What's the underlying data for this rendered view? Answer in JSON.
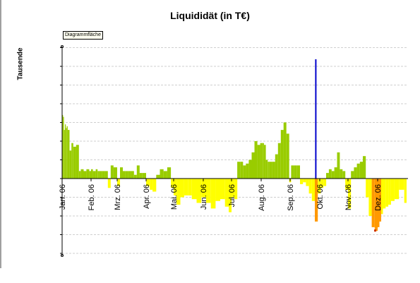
{
  "title": "Liquididät (in T€)",
  "ylabel": "Tausende",
  "tooltip": "Diagrammfläche",
  "chart_data": {
    "type": "bar",
    "title": "Liquididät (in T€)",
    "ylabel": "Tausende",
    "xlabel": "",
    "grid": true,
    "legend": "none",
    "categories": [
      "Jan. 06",
      "Feb. 06",
      "Mrz. 06",
      "Apr. 06",
      "Mai. 06",
      "Jun. 06",
      "Jul. 06",
      "Aug. 06",
      "Sep. 06",
      "Okt. 06",
      "Nov. 06",
      "Dez. 06"
    ],
    "ylim": [
      -4,
      7
    ],
    "vertical_line_date": "Sep. 27 06",
    "colors": {
      "positive": "#99cc00",
      "negative_low": "#ffff00",
      "negative_mid": "#ff9900",
      "negative_high": "#cc3300",
      "marker": "#0000cc"
    },
    "series": [
      {
        "x": [
          "Jan 01",
          "Jan 02",
          "Jan 03",
          "Jan 04",
          "Jan 05",
          "Jan 06",
          "Jan 07",
          "Jan 09",
          "Jan 11",
          "Jan 13",
          "Jan 16",
          "Jan 19",
          "Jan 21",
          "Jan 24",
          "Jan 27",
          "Jan 30",
          "Feb 01",
          "Feb 03",
          "Feb 06",
          "Feb 08",
          "Feb 10",
          "Feb 13",
          "Feb 16",
          "Feb 19",
          "Feb 22",
          "Feb 25",
          "Mar 01",
          "Mar 04",
          "Mar 07",
          "Mar 10",
          "Mar 13",
          "Mar 16",
          "Mar 19",
          "Mar 22",
          "Mar 25",
          "Mar 28",
          "Apr 01",
          "Apr 05",
          "Apr 08",
          "Apr 12",
          "Apr 16",
          "Apr 20",
          "Apr 24",
          "Apr 28",
          "May 01",
          "May 04",
          "May 08",
          "May 12",
          "May 16",
          "May 20",
          "May 25",
          "May 30",
          "Jun 04",
          "Jun 09",
          "Jun 14",
          "Jun 19",
          "Jun 24",
          "Jun 28",
          "Jul 01",
          "Jul 04",
          "Jul 07",
          "Jul 10",
          "Jul 13",
          "Jul 16",
          "Jul 19",
          "Jul 22",
          "Jul 25",
          "Jul 28",
          "Jul 31",
          "Aug 02",
          "Aug 04",
          "Aug 06",
          "Aug 08",
          "Aug 10",
          "Aug 13",
          "Aug 16",
          "Aug 19",
          "Aug 22",
          "Aug 25",
          "Aug 28",
          "Aug 31",
          "Sep 02",
          "Sep 05",
          "Sep 08",
          "Sep 11",
          "Sep 14",
          "Sep 17",
          "Sep 20",
          "Sep 23",
          "Sep 26",
          "Sep 29",
          "Oct 02",
          "Oct 05",
          "Oct 08",
          "Oct 11",
          "Oct 14",
          "Oct 17",
          "Oct 20",
          "Oct 23",
          "Oct 26",
          "Oct 29",
          "Nov 01",
          "Nov 04",
          "Nov 07",
          "Nov 10",
          "Nov 13",
          "Nov 16",
          "Nov 19",
          "Nov 22",
          "Nov 25",
          "Nov 28",
          "Dec 01",
          "Dec 03",
          "Dec 05",
          "Dec 07",
          "Dec 10",
          "Dec 13",
          "Dec 16",
          "Dec 20",
          "Dec 25",
          "Dec 31"
        ],
        "values": [
          3.4,
          3.3,
          2.6,
          2.9,
          2.7,
          2.8,
          2.6,
          1.5,
          1.9,
          1.7,
          1.8,
          0.4,
          0.5,
          0.4,
          0.5,
          0.4,
          0.5,
          0.4,
          0.5,
          0.4,
          0.4,
          0.4,
          0.4,
          -0.5,
          0.7,
          0.6,
          -0.4,
          0.6,
          0.4,
          0.4,
          0.4,
          0.4,
          0.2,
          0.7,
          0.3,
          0.3,
          -0.4,
          -0.6,
          -0.7,
          0.2,
          0.5,
          0.4,
          0.6,
          -0.5,
          -0.9,
          -1.4,
          -1.0,
          -0.9,
          -0.9,
          -1.1,
          -1.3,
          -1.0,
          -1.3,
          -1.6,
          -1.2,
          -1.1,
          -1.5,
          -1.8,
          -1.0,
          -1.1,
          0.9,
          0.9,
          0.7,
          0.8,
          1.0,
          1.4,
          2.0,
          1.8,
          1.9,
          1.9,
          1.8,
          1.0,
          0.9,
          0.9,
          0.9,
          1.3,
          1.9,
          2.6,
          3.0,
          2.4,
          -0.2,
          0.7,
          0.7,
          0.7,
          -0.3,
          -0.2,
          -0.4,
          -0.8,
          -1.2,
          -2.3,
          -0.8,
          -0.5,
          -0.4,
          0.3,
          0.5,
          0.4,
          0.6,
          1.4,
          0.5,
          0.4,
          -0.6,
          -1.6,
          0.4,
          0.6,
          0.8,
          0.9,
          1.2,
          -1.0,
          -2.0,
          -2.6,
          -2.8,
          -2.6,
          -2.3,
          -1.9,
          -1.6,
          -1.5,
          -1.4,
          -1.2,
          -1.1,
          -0.6,
          -1.3
        ]
      }
    ]
  }
}
